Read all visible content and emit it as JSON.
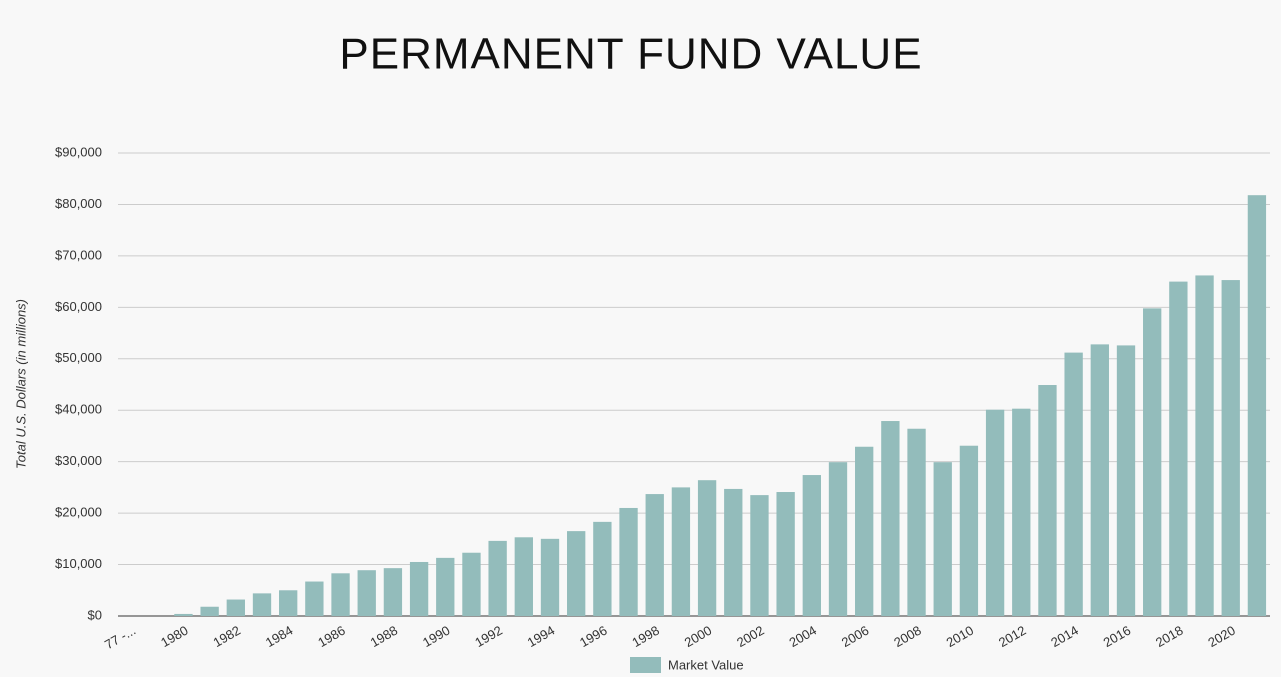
{
  "chart_data": {
    "type": "bar",
    "title": "PERMANENT FUND VALUE",
    "y_label": "Total U.S. Dollars (in millions)",
    "categories": [
      "77 -...",
      null,
      "1980",
      null,
      "1982",
      null,
      "1984",
      null,
      "1986",
      null,
      "1988",
      null,
      "1990",
      null,
      "1992",
      null,
      "1994",
      null,
      "1996",
      null,
      "1998",
      null,
      "2000",
      null,
      "2002",
      null,
      "2004",
      null,
      "2006",
      null,
      "2008",
      null,
      "2010",
      null,
      "2012",
      null,
      "2014",
      null,
      "2016",
      null,
      "2018",
      null,
      "2020",
      null
    ],
    "series": [
      {
        "name": "Market Value",
        "color": "#93bcbb",
        "values": [
          0,
          0,
          400,
          1800,
          3200,
          4400,
          5000,
          6700,
          8300,
          8900,
          9300,
          10500,
          11300,
          12300,
          14600,
          15300,
          15000,
          16500,
          18300,
          21000,
          23700,
          25000,
          26400,
          24700,
          23500,
          24100,
          27400,
          29900,
          32900,
          37900,
          36400,
          29900,
          33100,
          40100,
          40300,
          44900,
          51200,
          52800,
          52600,
          59800,
          65000,
          66200,
          65300,
          81800
        ]
      }
    ],
    "ylim": [
      0,
      90000
    ],
    "yticks": [
      {
        "value": 0,
        "label": "$0"
      },
      {
        "value": 10000,
        "label": "$10,000"
      },
      {
        "value": 20000,
        "label": "$20,000"
      },
      {
        "value": 30000,
        "label": "$30,000"
      },
      {
        "value": 40000,
        "label": "$40,000"
      },
      {
        "value": 50000,
        "label": "$50,000"
      },
      {
        "value": 60000,
        "label": "$60,000"
      },
      {
        "value": 70000,
        "label": "$70,000"
      },
      {
        "value": 80000,
        "label": "$80,000"
      },
      {
        "value": 90000,
        "label": "$90,000"
      }
    ],
    "grid": true,
    "legend": "bottom"
  }
}
